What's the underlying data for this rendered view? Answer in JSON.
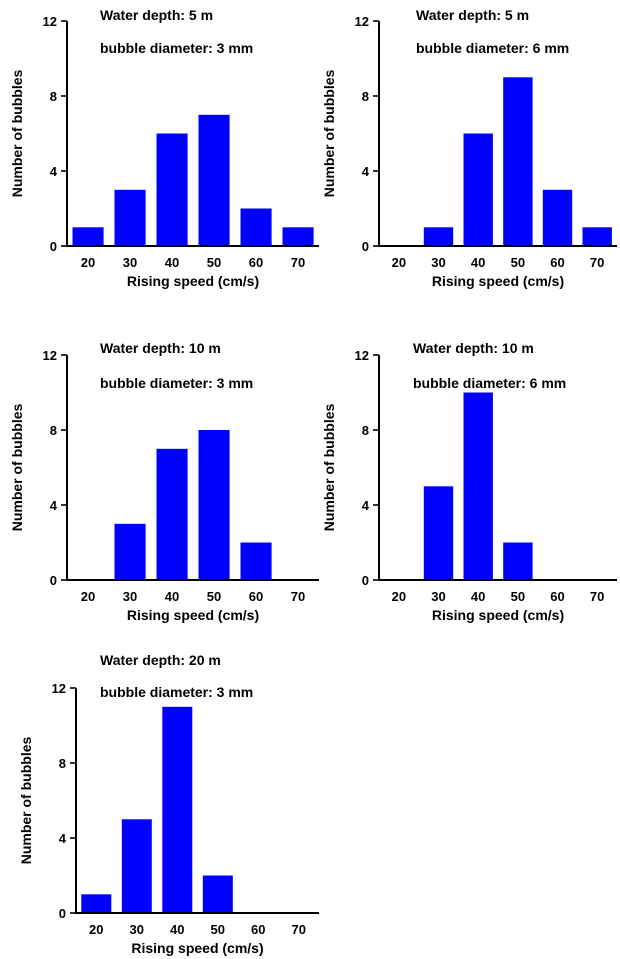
{
  "colors": {
    "bar": "#0000ff",
    "axis": "#000000"
  },
  "chart_data": [
    {
      "type": "bar",
      "annotations": [
        "Water depth: 5 m",
        "bubble diameter: 3 mm"
      ],
      "categories": [
        "20",
        "30",
        "40",
        "50",
        "60",
        "70"
      ],
      "values": [
        1,
        3,
        6,
        7,
        2,
        1
      ],
      "xlabel": "Rising speed (cm/s)",
      "ylabel": "Number of bubbles",
      "ylim": [
        0,
        12
      ],
      "yticks": [
        "0",
        "4",
        "8",
        "12"
      ],
      "grid": false
    },
    {
      "type": "bar",
      "annotations": [
        "Water depth: 5 m",
        "bubble diameter: 6 mm"
      ],
      "categories": [
        "20",
        "30",
        "40",
        "50",
        "60",
        "70"
      ],
      "values": [
        0,
        1,
        6,
        9,
        3,
        1
      ],
      "xlabel": "Rising speed (cm/s)",
      "ylabel": "Number of bubbles",
      "ylim": [
        0,
        12
      ],
      "yticks": [
        "0",
        "4",
        "8",
        "12"
      ],
      "grid": false
    },
    {
      "type": "bar",
      "annotations": [
        "Water depth: 10 m",
        "bubble diameter: 3 mm"
      ],
      "categories": [
        "20",
        "30",
        "40",
        "50",
        "60",
        "70"
      ],
      "values": [
        0,
        3,
        7,
        8,
        2,
        0
      ],
      "xlabel": "Rising speed (cm/s)",
      "ylabel": "Number of bubbles",
      "ylim": [
        0,
        12
      ],
      "yticks": [
        "0",
        "4",
        "8",
        "12"
      ],
      "grid": false
    },
    {
      "type": "bar",
      "annotations": [
        "Water depth: 10 m",
        "bubble diameter: 6 mm"
      ],
      "categories": [
        "20",
        "30",
        "40",
        "50",
        "60",
        "70"
      ],
      "values": [
        0,
        5,
        10,
        2,
        0,
        0
      ],
      "xlabel": "Rising speed (cm/s)",
      "ylabel": "Number of bubbles",
      "ylim": [
        0,
        12
      ],
      "yticks": [
        "0",
        "4",
        "8",
        "12"
      ],
      "grid": false
    },
    {
      "type": "bar",
      "annotations": [
        "Water depth: 20 m",
        "bubble diameter: 3 mm"
      ],
      "categories": [
        "20",
        "30",
        "40",
        "50",
        "60",
        "70"
      ],
      "values": [
        1,
        5,
        11,
        2,
        0,
        0
      ],
      "xlabel": "Rising speed (cm/s)",
      "ylabel": "Number of bubbles",
      "ylim": [
        0,
        12
      ],
      "yticks": [
        "0",
        "4",
        "8",
        "12"
      ],
      "grid": false
    }
  ]
}
